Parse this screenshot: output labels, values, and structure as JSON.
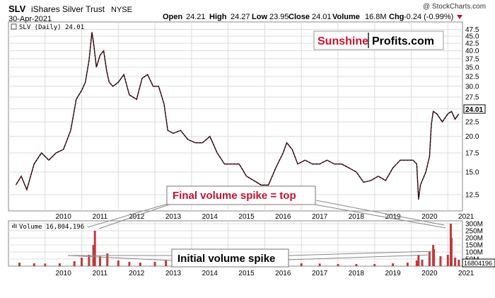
{
  "header": {
    "symbol": "SLV",
    "name": "iShares Silver Trust",
    "exchange": "NYSE",
    "date": "30-Apr-2021",
    "copyright": "@ StockCharts.com",
    "open_label": "Open",
    "open": "24.21",
    "high_label": "High",
    "high": "24.27",
    "low_label": "Low",
    "low": "23.95",
    "close_label": "Close",
    "close": "24.01",
    "volume_label": "Volume",
    "volume": "16.8M",
    "chg_label": "Chg",
    "chg": "-0.24 (-0.99%)"
  },
  "logo": {
    "part1": "Sunshine",
    "part2": "Profits.com"
  },
  "colors": {
    "price": "#000000",
    "down": "#c8102e",
    "volume": "#c0393b",
    "grid": "#dcdcdc",
    "accent": "#c8102e"
  },
  "chart_data": [
    {
      "type": "line",
      "legend": "SLV (Daily) 24.01",
      "last_value_label": "24.01",
      "y_scale": "log",
      "ylim": [
        11.2,
        48.5
      ],
      "y_ticks": [
        12.5,
        15.0,
        17.5,
        20.0,
        22.5,
        25.0,
        27.5,
        30.0,
        32.5,
        35.0,
        37.5,
        40.0,
        42.5,
        45.0,
        47.5
      ],
      "y_tick_labels": [
        "12.5",
        "15.0",
        "17.5",
        "20.0",
        "22.5",
        "25.0",
        "27.5",
        "30.0",
        "32.5",
        "35.0",
        "37.5",
        "40.0",
        "42.5",
        "45.0",
        "47.5"
      ],
      "x_ticks": [
        "2010",
        "2011",
        "2012",
        "2013",
        "2014",
        "2015",
        "2016",
        "2017",
        "2018",
        "2019",
        "2020",
        "2021"
      ],
      "x": [
        2009.2,
        2009.35,
        2009.5,
        2009.7,
        2009.9,
        2010.1,
        2010.3,
        2010.5,
        2010.7,
        2010.85,
        2011.0,
        2011.1,
        2011.2,
        2011.28,
        2011.33,
        2011.4,
        2011.5,
        2011.6,
        2011.68,
        2011.75,
        2011.85,
        2012.0,
        2012.15,
        2012.3,
        2012.5,
        2012.65,
        2012.8,
        2012.95,
        2013.1,
        2013.25,
        2013.35,
        2013.5,
        2013.7,
        2013.9,
        2014.1,
        2014.3,
        2014.5,
        2014.7,
        2014.9,
        2015.1,
        2015.3,
        2015.5,
        2015.7,
        2015.9,
        2016.1,
        2016.3,
        2016.5,
        2016.6,
        2016.75,
        2016.9,
        2017.1,
        2017.3,
        2017.5,
        2017.7,
        2017.9,
        2018.1,
        2018.3,
        2018.5,
        2018.7,
        2018.9,
        2019.1,
        2019.3,
        2019.5,
        2019.7,
        2019.9,
        2020.05,
        2020.15,
        2020.2,
        2020.25,
        2020.4,
        2020.5,
        2020.55,
        2020.6,
        2020.7,
        2020.85,
        2021.0,
        2021.1,
        2021.2,
        2021.3
      ],
      "y": [
        13.5,
        14.5,
        13.0,
        16.0,
        17.5,
        16.5,
        17.5,
        18.0,
        21.0,
        27.0,
        29.0,
        31.0,
        37.0,
        46.5,
        42.0,
        35.0,
        38.5,
        40.0,
        34.0,
        31.0,
        30.0,
        31.0,
        33.0,
        28.0,
        27.0,
        32.0,
        33.0,
        30.0,
        30.0,
        26.0,
        21.0,
        20.5,
        21.0,
        19.5,
        19.0,
        19.0,
        20.0,
        17.5,
        16.0,
        16.0,
        16.0,
        14.5,
        14.0,
        13.5,
        13.5,
        15.5,
        17.5,
        19.0,
        18.0,
        16.0,
        16.5,
        16.0,
        16.0,
        16.5,
        16.0,
        16.0,
        15.5,
        15.0,
        13.8,
        14.0,
        14.5,
        14.0,
        15.5,
        16.5,
        16.5,
        16.5,
        16.0,
        12.0,
        13.5,
        15.0,
        17.0,
        22.0,
        24.5,
        24.0,
        22.5,
        24.0,
        24.5,
        23.0,
        24.0
      ]
    },
    {
      "type": "bar",
      "legend": "Volume 16,804,196",
      "last_value_label": "16804196",
      "ylim": [
        0,
        320
      ],
      "y_ticks": [
        50,
        100,
        150,
        200,
        250,
        300
      ],
      "y_tick_labels": [
        "50M",
        "100M",
        "150M",
        "200M",
        "250M",
        "300M"
      ],
      "x_ticks": [
        "2010",
        "2011",
        "2012",
        "2013",
        "2014",
        "2015",
        "2016",
        "2017",
        "2018",
        "2019",
        "2020",
        "2021"
      ],
      "x": [
        2009.3,
        2009.7,
        2010.0,
        2010.4,
        2010.8,
        2011.0,
        2011.2,
        2011.32,
        2011.36,
        2011.5,
        2011.7,
        2012.0,
        2012.3,
        2012.6,
        2013.0,
        2013.3,
        2013.6,
        2014.0,
        2014.5,
        2015.0,
        2015.5,
        2016.0,
        2016.5,
        2017.0,
        2017.5,
        2018.0,
        2018.5,
        2019.0,
        2019.5,
        2019.9,
        2020.15,
        2020.2,
        2020.3,
        2020.5,
        2020.6,
        2020.62,
        2020.8,
        2021.0,
        2021.08,
        2021.1,
        2021.2,
        2021.3
      ],
      "y": [
        25,
        20,
        18,
        20,
        35,
        60,
        80,
        150,
        250,
        70,
        90,
        40,
        30,
        25,
        30,
        45,
        35,
        25,
        20,
        22,
        20,
        25,
        30,
        20,
        18,
        15,
        15,
        15,
        20,
        25,
        40,
        80,
        45,
        100,
        150,
        120,
        70,
        80,
        300,
        200,
        60,
        45
      ]
    }
  ],
  "annotations": {
    "final_spike": "Final volume spike = top",
    "initial_spike": "Initial volume spike"
  }
}
